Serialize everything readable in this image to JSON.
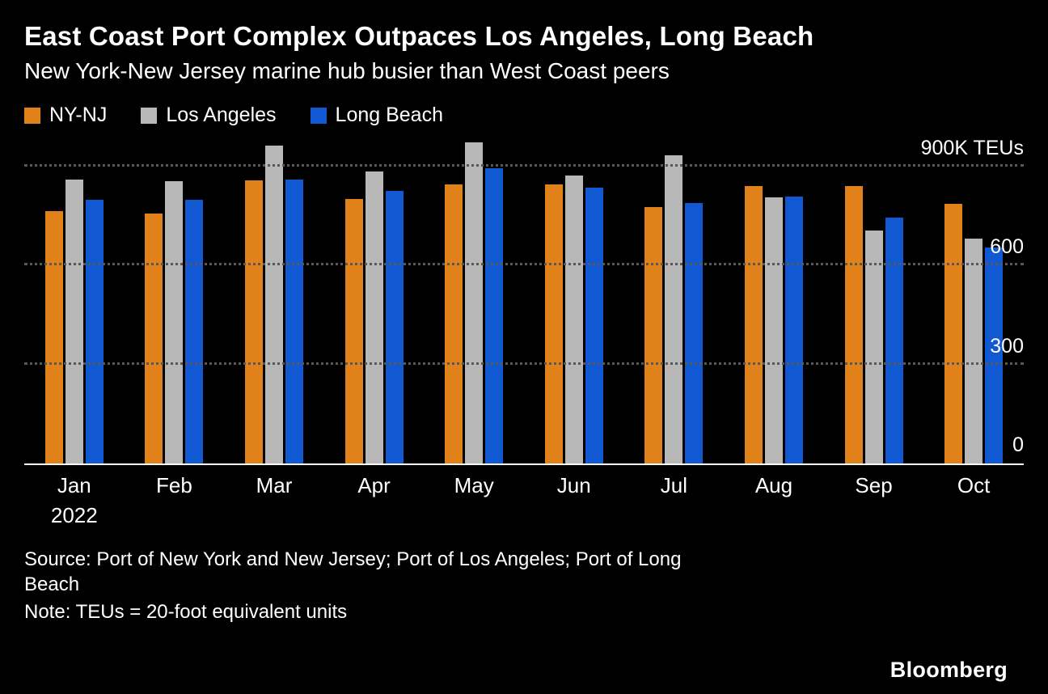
{
  "title": "East Coast Port Complex Outpaces Los Angeles, Long Beach",
  "subtitle": "New York-New Jersey marine hub busier than West Coast peers",
  "legend": [
    {
      "label": "NY-NJ",
      "color": "#e08119"
    },
    {
      "label": "Los Angeles",
      "color": "#b8b8b8"
    },
    {
      "label": "Long Beach",
      "color": "#1159d2"
    }
  ],
  "chart_data": {
    "type": "bar",
    "title": "East Coast Port Complex Outpaces Los Angeles, Long Beach",
    "subtitle": "New York-New Jersey marine hub busier than West Coast peers",
    "unit": "thousand TEUs",
    "categories": [
      "Jan",
      "Feb",
      "Mar",
      "Apr",
      "May",
      "Jun",
      "Jul",
      "Aug",
      "Sep",
      "Oct"
    ],
    "x_sub_label": {
      "index": 0,
      "label": "2022"
    },
    "series": [
      {
        "name": "NY-NJ",
        "color": "#e08119",
        "values": [
          765,
          757,
          858,
          802,
          846,
          846,
          777,
          841,
          841,
          787
        ]
      },
      {
        "name": "Los Angeles",
        "color": "#b8b8b8",
        "values": [
          860,
          855,
          965,
          885,
          973,
          873,
          934,
          807,
          706,
          681
        ]
      },
      {
        "name": "Long Beach",
        "color": "#1159d2",
        "values": [
          800,
          799,
          860,
          826,
          895,
          836,
          789,
          809,
          745,
          656
        ]
      }
    ],
    "y_ticks": [
      {
        "value": 900,
        "label": "900K TEUs"
      },
      {
        "value": 600,
        "label": "600"
      },
      {
        "value": 300,
        "label": "300"
      },
      {
        "value": 0,
        "label": "0"
      }
    ],
    "ylim": [
      0,
      985
    ],
    "grid": "horizontal-dotted",
    "legend_position": "top-left"
  },
  "footer": {
    "source_lines": [
      "Source: Port of New York and New Jersey; Port of Los Angeles; Port of Long",
      "Beach"
    ],
    "note": "Note: TEUs = 20-foot equivalent units",
    "logo": "Bloomberg"
  }
}
